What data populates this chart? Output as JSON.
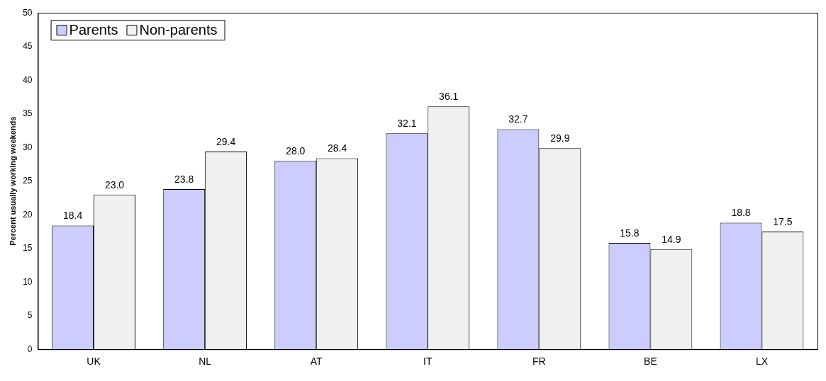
{
  "chart_data": {
    "type": "bar",
    "ylabel": "Percent usually working weekends",
    "categories": [
      "UK",
      "NL",
      "AT",
      "IT",
      "FR",
      "BE",
      "LX"
    ],
    "series": [
      {
        "name": "Parents",
        "color": "#ccccff",
        "values": [
          18.4,
          23.8,
          28.0,
          32.1,
          32.7,
          15.8,
          18.8
        ],
        "value_labels": [
          "18.4",
          "23.8",
          "28.0",
          "32.1",
          "32.7",
          "15.8",
          "18.8"
        ]
      },
      {
        "name": "Non-parents",
        "color": "#f0f0f0",
        "values": [
          23.0,
          29.4,
          28.4,
          36.1,
          29.9,
          14.9,
          17.5
        ],
        "value_labels": [
          "23.0",
          "29.4",
          "28.4",
          "36.1",
          "29.9",
          "14.9",
          "17.5"
        ]
      }
    ],
    "ylim": [
      0,
      50
    ],
    "yticks": [
      0,
      5,
      10,
      15,
      20,
      25,
      30,
      35,
      40,
      45,
      50
    ],
    "grid": false,
    "legend": "top left",
    "data_labels": true
  }
}
